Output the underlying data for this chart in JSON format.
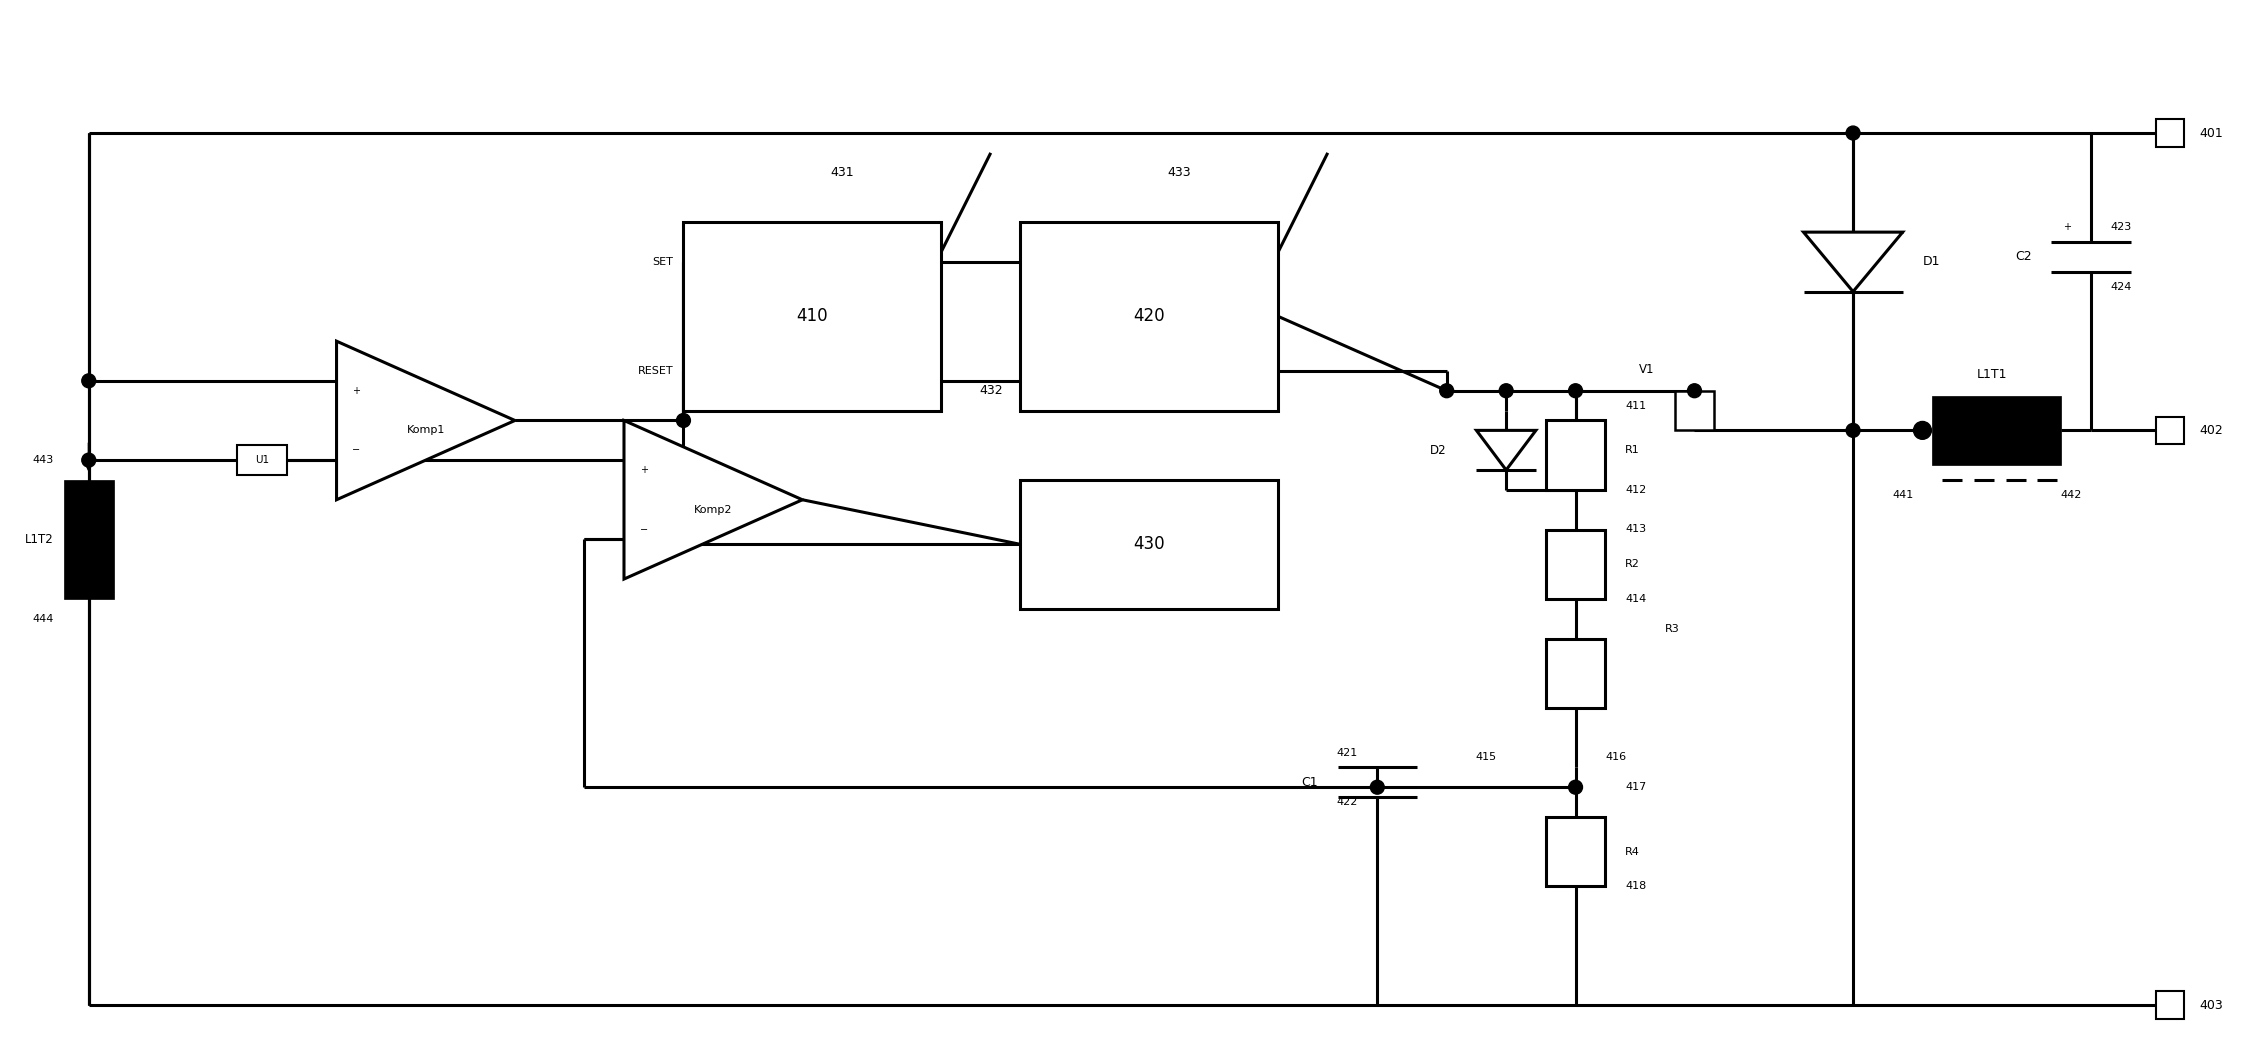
{
  "bg_color": "#ffffff",
  "line_color": "#000000",
  "lw": 2.2,
  "fig_width": 22.59,
  "fig_height": 10.59,
  "dpi": 100,
  "xlim": [
    0,
    226
  ],
  "ylim": [
    0,
    106
  ]
}
